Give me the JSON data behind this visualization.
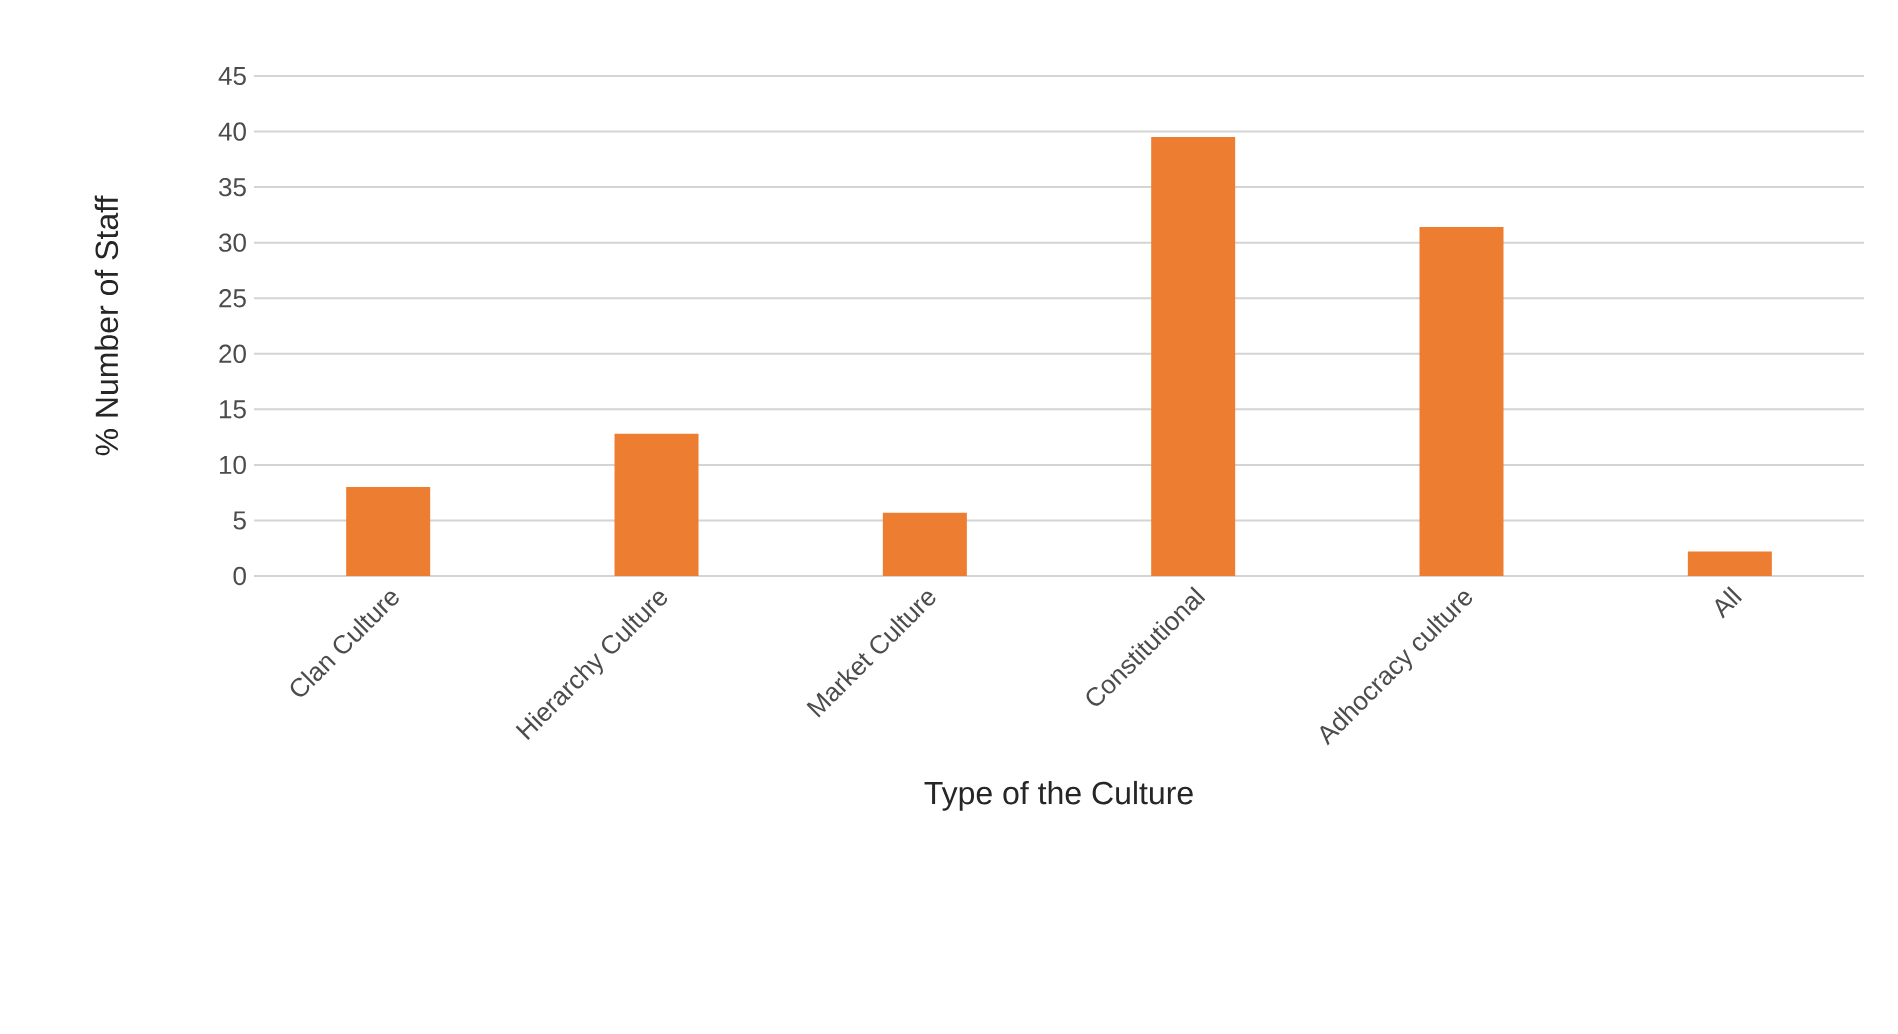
{
  "chart_data": {
    "type": "bar",
    "xlabel": "Type of the Culture",
    "ylabel": "% Number of Staff",
    "categories": [
      "Clan Culture",
      "Hierarchy Culture",
      "Market Culture",
      "Constitutional",
      "Adhocracy culture",
      "All"
    ],
    "values": [
      8.0,
      12.8,
      5.7,
      39.5,
      31.4,
      2.2
    ],
    "color": "#ed7d31",
    "ylim": [
      0,
      45
    ],
    "yticks": [
      0,
      5,
      10,
      15,
      20,
      25,
      30,
      35,
      40,
      45
    ],
    "grid": "y"
  }
}
